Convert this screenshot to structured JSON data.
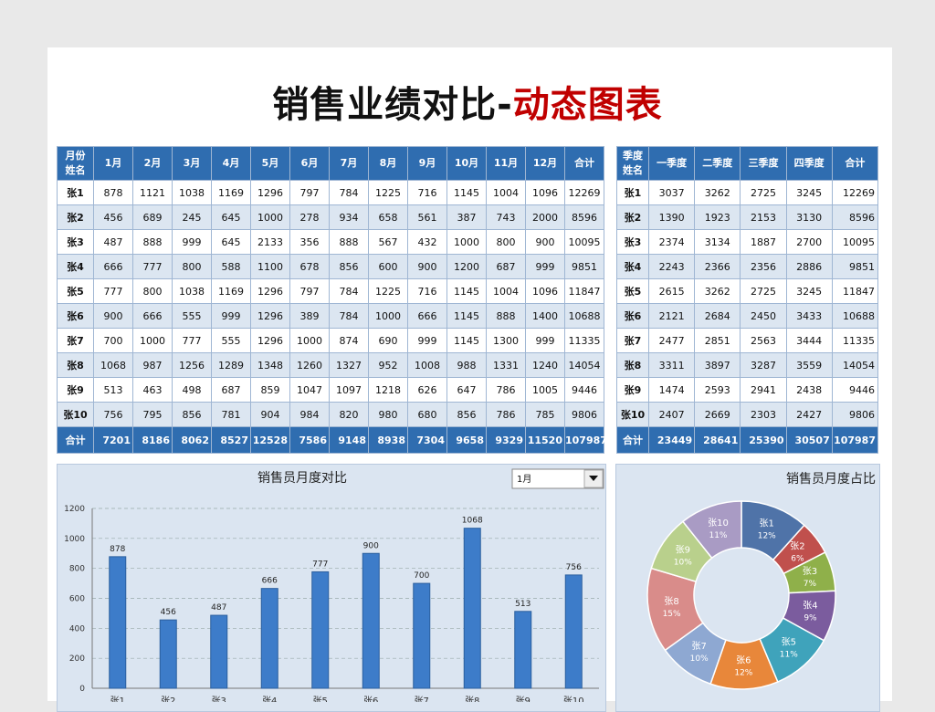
{
  "title_main": "销售业绩对比-",
  "title_highlight": "动态图表",
  "monthly_table": {
    "corner": [
      "月份",
      "姓名"
    ],
    "columns": [
      "1月",
      "2月",
      "3月",
      "4月",
      "5月",
      "6月",
      "7月",
      "8月",
      "9月",
      "10月",
      "11月",
      "12月",
      "合计"
    ],
    "rows": [
      {
        "name": "张1",
        "values": [
          878,
          1121,
          1038,
          1169,
          1296,
          797,
          784,
          1225,
          716,
          1145,
          1004,
          1096,
          12269
        ]
      },
      {
        "name": "张2",
        "values": [
          456,
          689,
          245,
          645,
          1000,
          278,
          934,
          658,
          561,
          387,
          743,
          2000,
          8596
        ]
      },
      {
        "name": "张3",
        "values": [
          487,
          888,
          999,
          645,
          2133,
          356,
          888,
          567,
          432,
          1000,
          800,
          900,
          10095
        ]
      },
      {
        "name": "张4",
        "values": [
          666,
          777,
          800,
          588,
          1100,
          678,
          856,
          600,
          900,
          1200,
          687,
          999,
          9851
        ]
      },
      {
        "name": "张5",
        "values": [
          777,
          800,
          1038,
          1169,
          1296,
          797,
          784,
          1225,
          716,
          1145,
          1004,
          1096,
          11847
        ]
      },
      {
        "name": "张6",
        "values": [
          900,
          666,
          555,
          999,
          1296,
          389,
          784,
          1000,
          666,
          1145,
          888,
          1400,
          10688
        ]
      },
      {
        "name": "张7",
        "values": [
          700,
          1000,
          777,
          555,
          1296,
          1000,
          874,
          690,
          999,
          1145,
          1300,
          999,
          11335
        ]
      },
      {
        "name": "张8",
        "values": [
          1068,
          987,
          1256,
          1289,
          1348,
          1260,
          1327,
          952,
          1008,
          988,
          1331,
          1240,
          14054
        ]
      },
      {
        "name": "张9",
        "values": [
          513,
          463,
          498,
          687,
          859,
          1047,
          1097,
          1218,
          626,
          647,
          786,
          1005,
          9446
        ]
      },
      {
        "name": "张10",
        "values": [
          756,
          795,
          856,
          781,
          904,
          984,
          820,
          980,
          680,
          856,
          786,
          785,
          9806
        ]
      }
    ],
    "total": {
      "name": "合计",
      "values": [
        7201,
        8186,
        8062,
        8527,
        12528,
        7586,
        9148,
        8938,
        7304,
        9658,
        9329,
        11520,
        107987
      ]
    }
  },
  "quarterly_table": {
    "corner": [
      "季度",
      "姓名"
    ],
    "columns": [
      "一季度",
      "二季度",
      "三季度",
      "四季度",
      "合计"
    ],
    "rows": [
      {
        "name": "张1",
        "values": [
          3037,
          3262,
          2725,
          3245,
          12269
        ]
      },
      {
        "name": "张2",
        "values": [
          1390,
          1923,
          2153,
          3130,
          8596
        ]
      },
      {
        "name": "张3",
        "values": [
          2374,
          3134,
          1887,
          2700,
          10095
        ]
      },
      {
        "name": "张4",
        "values": [
          2243,
          2366,
          2356,
          2886,
          9851
        ]
      },
      {
        "name": "张5",
        "values": [
          2615,
          3262,
          2725,
          3245,
          11847
        ]
      },
      {
        "name": "张6",
        "values": [
          2121,
          2684,
          2450,
          3433,
          10688
        ]
      },
      {
        "name": "张7",
        "values": [
          2477,
          2851,
          2563,
          3444,
          11335
        ]
      },
      {
        "name": "张8",
        "values": [
          3311,
          3897,
          3287,
          3559,
          14054
        ]
      },
      {
        "name": "张9",
        "values": [
          1474,
          2593,
          2941,
          2438,
          9446
        ]
      },
      {
        "name": "张10",
        "values": [
          2407,
          2669,
          2303,
          2427,
          9806
        ]
      }
    ],
    "total": {
      "name": "合计",
      "values": [
        23449,
        28641,
        25390,
        30507,
        107987
      ]
    }
  },
  "chart_data": [
    {
      "type": "bar",
      "title": "销售员月度对比",
      "selector": "1月",
      "categories": [
        "张1",
        "张2",
        "张3",
        "张4",
        "张5",
        "张6",
        "张7",
        "张8",
        "张9",
        "张10"
      ],
      "values": [
        878,
        456,
        487,
        666,
        777,
        900,
        700,
        1068,
        513,
        756
      ],
      "color": "#3d7cc9",
      "ylim": [
        0,
        1200
      ],
      "yticks": [
        0,
        200,
        400,
        600,
        800,
        1000,
        1200
      ],
      "grid": true
    },
    {
      "type": "pie",
      "title": "销售员月度占比",
      "categories": [
        "张1",
        "张2",
        "张3",
        "张4",
        "张5",
        "张6",
        "张7",
        "张8",
        "张9",
        "张10"
      ],
      "values": [
        12,
        6,
        7,
        9,
        11,
        12,
        10,
        15,
        10,
        11
      ],
      "value_labels": [
        "12%",
        "6%",
        "7%",
        "9%",
        "11%",
        "12%",
        "10%",
        "15%",
        "10%",
        "11%"
      ],
      "colors": [
        "#4f73a8",
        "#c0504d",
        "#8fb04a",
        "#7b5c9e",
        "#3fa3bb",
        "#e8873a",
        "#8ea8d2",
        "#d98c8a",
        "#b9d08c",
        "#a99bc4"
      ],
      "donut": true
    }
  ]
}
